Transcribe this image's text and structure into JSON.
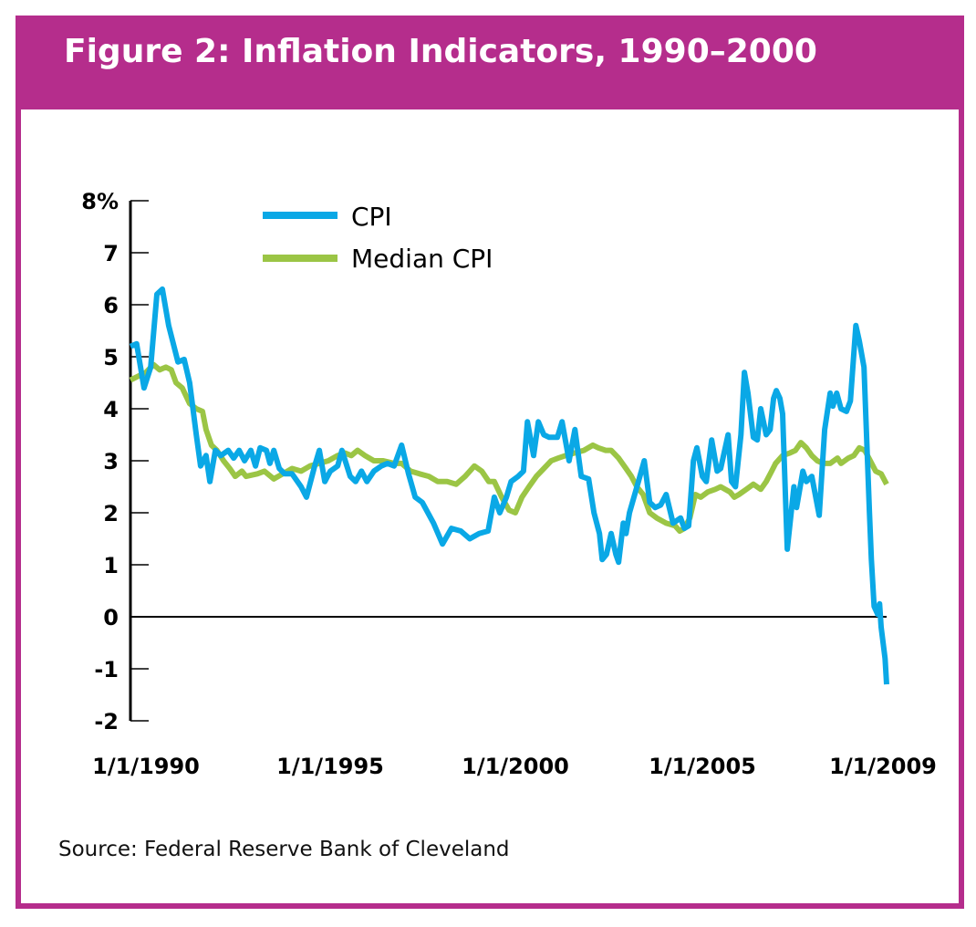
{
  "header": {
    "title": "Figure 2: Inflation Indicators, 1990–2000"
  },
  "source": "Source: Federal Reserve Bank of Cleveland",
  "colors": {
    "frame": "#b52d8c",
    "cpi": "#0aa8e6",
    "median": "#9bc545"
  },
  "chart_data": {
    "type": "line",
    "title": "Figure 2: Inflation Indicators, 1990–2000",
    "xlabel": "",
    "ylabel": "",
    "ylim": [
      -2,
      8
    ],
    "xlim": [
      1990,
      2009.41
    ],
    "ytick_labels": [
      "8%",
      "7",
      "6",
      "5",
      "4",
      "3",
      "2",
      "1",
      "0",
      "-1",
      "-2"
    ],
    "yticks": [
      8,
      7,
      6,
      5,
      4,
      3,
      2,
      1,
      0,
      -1,
      -2
    ],
    "xtick_labels": [
      "1/1/1990",
      "1/1/1995",
      "1/1/2000",
      "1/1/2005",
      "1/1/2009"
    ],
    "grid": false,
    "legend": "top-left",
    "series": [
      {
        "name": "CPI",
        "color": "#0aa8e6",
        "points": [
          [
            1990.0,
            5.2
          ],
          [
            1990.16,
            5.25
          ],
          [
            1990.35,
            4.4
          ],
          [
            1990.52,
            4.8
          ],
          [
            1990.68,
            6.2
          ],
          [
            1990.82,
            6.3
          ],
          [
            1990.98,
            5.6
          ],
          [
            1991.22,
            4.9
          ],
          [
            1991.38,
            4.95
          ],
          [
            1991.52,
            4.5
          ],
          [
            1991.69,
            3.5
          ],
          [
            1991.8,
            2.9
          ],
          [
            1991.94,
            3.1
          ],
          [
            1992.04,
            2.6
          ],
          [
            1992.18,
            3.2
          ],
          [
            1992.32,
            3.1
          ],
          [
            1992.51,
            3.2
          ],
          [
            1992.65,
            3.05
          ],
          [
            1992.79,
            3.2
          ],
          [
            1992.93,
            3.0
          ],
          [
            1993.09,
            3.2
          ],
          [
            1993.21,
            2.9
          ],
          [
            1993.33,
            3.25
          ],
          [
            1993.49,
            3.2
          ],
          [
            1993.58,
            2.95
          ],
          [
            1993.68,
            3.2
          ],
          [
            1993.82,
            2.85
          ],
          [
            1993.96,
            2.75
          ],
          [
            1994.15,
            2.75
          ],
          [
            1994.38,
            2.5
          ],
          [
            1994.52,
            2.3
          ],
          [
            1994.73,
            2.9
          ],
          [
            1994.85,
            3.2
          ],
          [
            1994.99,
            2.6
          ],
          [
            1995.13,
            2.8
          ],
          [
            1995.32,
            2.9
          ],
          [
            1995.43,
            3.2
          ],
          [
            1995.64,
            2.7
          ],
          [
            1995.78,
            2.6
          ],
          [
            1995.93,
            2.8
          ],
          [
            1996.07,
            2.6
          ],
          [
            1996.25,
            2.8
          ],
          [
            1996.44,
            2.9
          ],
          [
            1996.6,
            2.95
          ],
          [
            1996.77,
            2.9
          ],
          [
            1996.96,
            3.3
          ],
          [
            1997.14,
            2.75
          ],
          [
            1997.31,
            2.3
          ],
          [
            1997.49,
            2.2
          ],
          [
            1997.78,
            1.8
          ],
          [
            1998.01,
            1.4
          ],
          [
            1998.24,
            1.7
          ],
          [
            1998.48,
            1.65
          ],
          [
            1998.71,
            1.5
          ],
          [
            1998.95,
            1.6
          ],
          [
            1999.18,
            1.65
          ],
          [
            1999.34,
            2.3
          ],
          [
            1999.48,
            2.0
          ],
          [
            1999.65,
            2.3
          ],
          [
            1999.77,
            2.6
          ],
          [
            1999.95,
            2.7
          ],
          [
            2000.09,
            2.8
          ],
          [
            2000.19,
            3.75
          ],
          [
            2000.35,
            3.1
          ],
          [
            2000.47,
            3.75
          ],
          [
            2000.61,
            3.5
          ],
          [
            2000.75,
            3.45
          ],
          [
            2000.96,
            3.45
          ],
          [
            2001.08,
            3.75
          ],
          [
            2001.26,
            3.0
          ],
          [
            2001.41,
            3.6
          ],
          [
            2001.57,
            2.7
          ],
          [
            2001.76,
            2.65
          ],
          [
            2001.9,
            2.0
          ],
          [
            2002.04,
            1.6
          ],
          [
            2002.11,
            1.1
          ],
          [
            2002.22,
            1.2
          ],
          [
            2002.34,
            1.6
          ],
          [
            2002.46,
            1.2
          ],
          [
            2002.53,
            1.05
          ],
          [
            2002.65,
            1.8
          ],
          [
            2002.72,
            1.6
          ],
          [
            2002.81,
            2.0
          ],
          [
            2003.04,
            2.6
          ],
          [
            2003.19,
            3.0
          ],
          [
            2003.33,
            2.2
          ],
          [
            2003.47,
            2.1
          ],
          [
            2003.61,
            2.15
          ],
          [
            2003.75,
            2.35
          ],
          [
            2003.93,
            1.8
          ],
          [
            2004.12,
            1.9
          ],
          [
            2004.22,
            1.7
          ],
          [
            2004.33,
            1.75
          ],
          [
            2004.45,
            3.0
          ],
          [
            2004.54,
            3.25
          ],
          [
            2004.68,
            2.7
          ],
          [
            2004.78,
            2.6
          ],
          [
            2004.92,
            3.4
          ],
          [
            2005.06,
            2.8
          ],
          [
            2005.15,
            2.85
          ],
          [
            2005.34,
            3.5
          ],
          [
            2005.43,
            2.6
          ],
          [
            2005.53,
            2.5
          ],
          [
            2005.67,
            3.5
          ],
          [
            2005.76,
            4.7
          ],
          [
            2005.85,
            4.3
          ],
          [
            2005.99,
            3.45
          ],
          [
            2006.09,
            3.4
          ],
          [
            2006.18,
            4.0
          ],
          [
            2006.32,
            3.5
          ],
          [
            2006.42,
            3.6
          ],
          [
            2006.51,
            4.2
          ],
          [
            2006.58,
            4.35
          ],
          [
            2006.67,
            4.2
          ],
          [
            2006.74,
            3.9
          ],
          [
            2006.86,
            1.3
          ],
          [
            2007.03,
            2.5
          ],
          [
            2007.1,
            2.1
          ],
          [
            2007.26,
            2.8
          ],
          [
            2007.35,
            2.6
          ],
          [
            2007.49,
            2.7
          ],
          [
            2007.68,
            1.95
          ],
          [
            2007.82,
            3.6
          ],
          [
            2007.96,
            4.3
          ],
          [
            2008.03,
            4.05
          ],
          [
            2008.13,
            4.3
          ],
          [
            2008.24,
            4.0
          ],
          [
            2008.38,
            3.95
          ],
          [
            2008.48,
            4.15
          ],
          [
            2008.62,
            5.6
          ],
          [
            2008.71,
            5.3
          ],
          [
            2008.83,
            4.8
          ],
          [
            2008.97,
            2.0
          ],
          [
            2009.02,
            1.1
          ],
          [
            2009.09,
            0.2
          ],
          [
            2009.18,
            0.05
          ],
          [
            2009.23,
            0.25
          ],
          [
            2009.27,
            -0.2
          ],
          [
            2009.37,
            -0.8
          ],
          [
            2009.41,
            -1.3
          ]
        ]
      },
      {
        "name": "Median CPI",
        "color": "#9bc545",
        "points": [
          [
            1990.0,
            4.55
          ],
          [
            1990.4,
            4.7
          ],
          [
            1990.59,
            4.85
          ],
          [
            1990.75,
            4.75
          ],
          [
            1990.91,
            4.8
          ],
          [
            1991.05,
            4.75
          ],
          [
            1991.17,
            4.5
          ],
          [
            1991.33,
            4.4
          ],
          [
            1991.52,
            4.1
          ],
          [
            1991.69,
            4.0
          ],
          [
            1991.85,
            3.95
          ],
          [
            1991.94,
            3.6
          ],
          [
            1992.08,
            3.3
          ],
          [
            1992.22,
            3.2
          ],
          [
            1992.39,
            3.0
          ],
          [
            1992.55,
            2.85
          ],
          [
            1992.69,
            2.7
          ],
          [
            1992.86,
            2.8
          ],
          [
            1992.97,
            2.7
          ],
          [
            1993.26,
            2.75
          ],
          [
            1993.44,
            2.8
          ],
          [
            1993.68,
            2.65
          ],
          [
            1993.91,
            2.75
          ],
          [
            1994.15,
            2.85
          ],
          [
            1994.38,
            2.8
          ],
          [
            1994.61,
            2.9
          ],
          [
            1994.85,
            2.95
          ],
          [
            1995.08,
            3.0
          ],
          [
            1995.32,
            3.1
          ],
          [
            1995.5,
            3.15
          ],
          [
            1995.67,
            3.1
          ],
          [
            1995.83,
            3.2
          ],
          [
            1996.02,
            3.1
          ],
          [
            1996.25,
            3.0
          ],
          [
            1996.49,
            3.0
          ],
          [
            1996.77,
            2.95
          ],
          [
            1996.96,
            2.95
          ],
          [
            1997.19,
            2.8
          ],
          [
            1997.42,
            2.75
          ],
          [
            1997.66,
            2.7
          ],
          [
            1997.89,
            2.6
          ],
          [
            1998.13,
            2.6
          ],
          [
            1998.36,
            2.55
          ],
          [
            1998.59,
            2.7
          ],
          [
            1998.83,
            2.9
          ],
          [
            1999.02,
            2.8
          ],
          [
            1999.2,
            2.6
          ],
          [
            1999.34,
            2.6
          ],
          [
            1999.53,
            2.3
          ],
          [
            1999.72,
            2.05
          ],
          [
            1999.88,
            2.0
          ],
          [
            2000.05,
            2.3
          ],
          [
            2000.23,
            2.5
          ],
          [
            2000.42,
            2.7
          ],
          [
            2000.61,
            2.85
          ],
          [
            2000.8,
            3.0
          ],
          [
            2000.98,
            3.05
          ],
          [
            2001.17,
            3.1
          ],
          [
            2001.41,
            3.15
          ],
          [
            2001.64,
            3.2
          ],
          [
            2001.87,
            3.3
          ],
          [
            2002.01,
            3.25
          ],
          [
            2002.2,
            3.2
          ],
          [
            2002.34,
            3.2
          ],
          [
            2002.53,
            3.05
          ],
          [
            2002.72,
            2.85
          ],
          [
            2002.86,
            2.7
          ],
          [
            2003.0,
            2.5
          ],
          [
            2003.16,
            2.35
          ],
          [
            2003.33,
            2.0
          ],
          [
            2003.51,
            1.9
          ],
          [
            2003.75,
            1.8
          ],
          [
            2003.98,
            1.75
          ],
          [
            2004.1,
            1.65
          ],
          [
            2004.22,
            1.7
          ],
          [
            2004.36,
            1.9
          ],
          [
            2004.5,
            2.35
          ],
          [
            2004.64,
            2.3
          ],
          [
            2004.82,
            2.4
          ],
          [
            2005.01,
            2.45
          ],
          [
            2005.15,
            2.5
          ],
          [
            2005.39,
            2.4
          ],
          [
            2005.5,
            2.3
          ],
          [
            2005.62,
            2.35
          ],
          [
            2005.81,
            2.45
          ],
          [
            2005.99,
            2.55
          ],
          [
            2006.18,
            2.45
          ],
          [
            2006.32,
            2.6
          ],
          [
            2006.46,
            2.8
          ],
          [
            2006.56,
            2.95
          ],
          [
            2006.74,
            3.1
          ],
          [
            2006.93,
            3.15
          ],
          [
            2007.07,
            3.2
          ],
          [
            2007.21,
            3.35
          ],
          [
            2007.35,
            3.25
          ],
          [
            2007.49,
            3.1
          ],
          [
            2007.63,
            3.0
          ],
          [
            2007.78,
            2.95
          ],
          [
            2007.96,
            2.95
          ],
          [
            2008.15,
            3.05
          ],
          [
            2008.24,
            2.95
          ],
          [
            2008.43,
            3.05
          ],
          [
            2008.57,
            3.1
          ],
          [
            2008.71,
            3.25
          ],
          [
            2008.85,
            3.2
          ],
          [
            2008.99,
            3.0
          ],
          [
            2009.13,
            2.8
          ],
          [
            2009.27,
            2.75
          ],
          [
            2009.41,
            2.55
          ]
        ]
      }
    ]
  }
}
